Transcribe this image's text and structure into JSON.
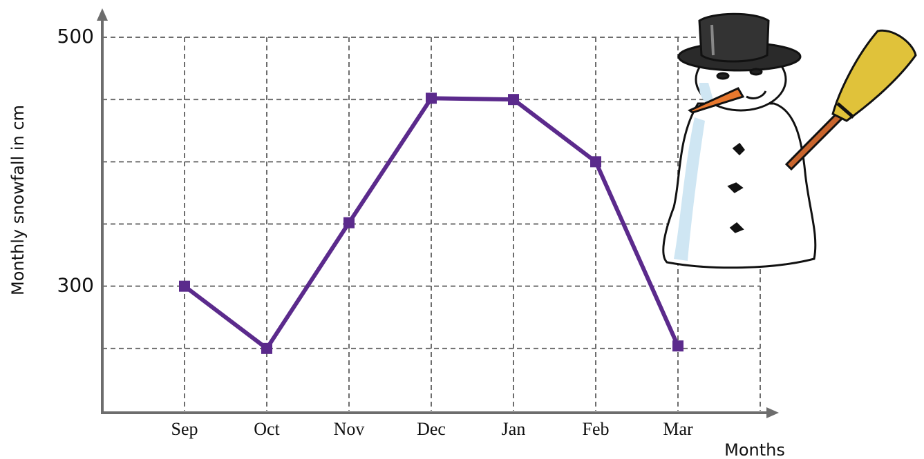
{
  "chart_data": {
    "type": "line",
    "x_label": "Months",
    "y_label": "Monthly snowfall in cm",
    "categories": [
      "Sep",
      "Oct",
      "Nov",
      "Dec",
      "Jan",
      "Feb",
      "Mar"
    ],
    "values": [
      300,
      250,
      351,
      451,
      450,
      400,
      252
    ],
    "color": "#5b2a8c",
    "ylim": [
      200,
      500
    ],
    "yticks": [
      300,
      500
    ],
    "ygrid": [
      250,
      300,
      350,
      400,
      450,
      500
    ],
    "grid": true
  }
}
